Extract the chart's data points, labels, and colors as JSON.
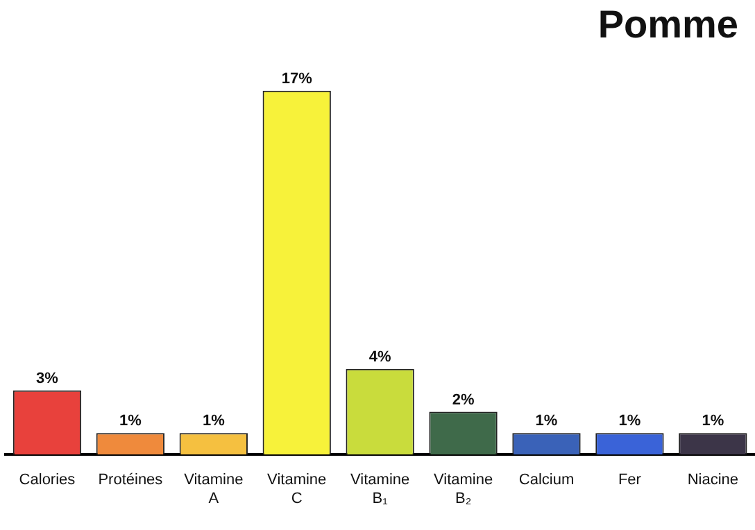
{
  "chart_data": {
    "type": "bar",
    "title": "Pomme",
    "categories": [
      "Calories",
      "Protéines",
      "Vitamine A",
      "Vitamine C",
      "Vitamine B₁",
      "Vitamine B₂",
      "Calcium",
      "Fer",
      "Niacine"
    ],
    "values": [
      3,
      1,
      1,
      17,
      4,
      2,
      1,
      1,
      1
    ],
    "value_labels": [
      "3%",
      "1%",
      "1%",
      "17%",
      "4%",
      "2%",
      "1%",
      "1%",
      "1%"
    ],
    "colors": [
      "#e8413c",
      "#ef8a3c",
      "#f5c040",
      "#f7f23a",
      "#c9dc3c",
      "#3f6a4a",
      "#3a62b8",
      "#3a63d8",
      "#3c3548"
    ],
    "grid": false,
    "legend": false,
    "tick_labels": "x"
  }
}
